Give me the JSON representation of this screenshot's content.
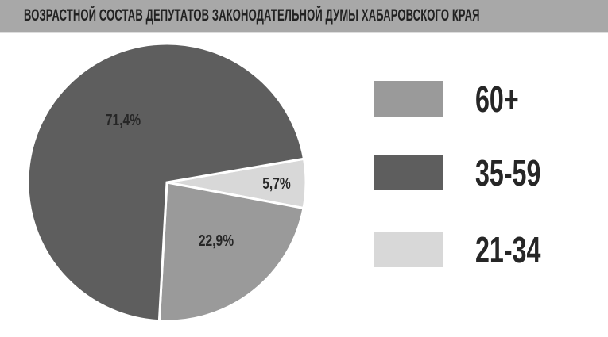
{
  "chart_data": {
    "type": "pie",
    "title": "ВОЗРАСТНОЙ СОСТАВ ДЕПУТАТОВ ЗАКОНОДАТЕЛЬНОЙ ДУМЫ ХАБАРОВСКОГО КРАЯ",
    "slices": [
      {
        "label": "21-34",
        "value": 5.7,
        "value_label": "5,7%",
        "color": "#d8d8d8"
      },
      {
        "label": "60+",
        "value": 22.9,
        "value_label": "22,9%",
        "color": "#9a9a9a"
      },
      {
        "label": "35-59",
        "value": 71.4,
        "value_label": "71,4%",
        "color": "#5e5e5e"
      }
    ],
    "legend": [
      {
        "label": "60+",
        "color": "#9a9a9a"
      },
      {
        "label": "35-59",
        "color": "#5e5e5e"
      },
      {
        "label": "21-34",
        "color": "#d8d8d8"
      }
    ],
    "legend_placement": "right"
  }
}
